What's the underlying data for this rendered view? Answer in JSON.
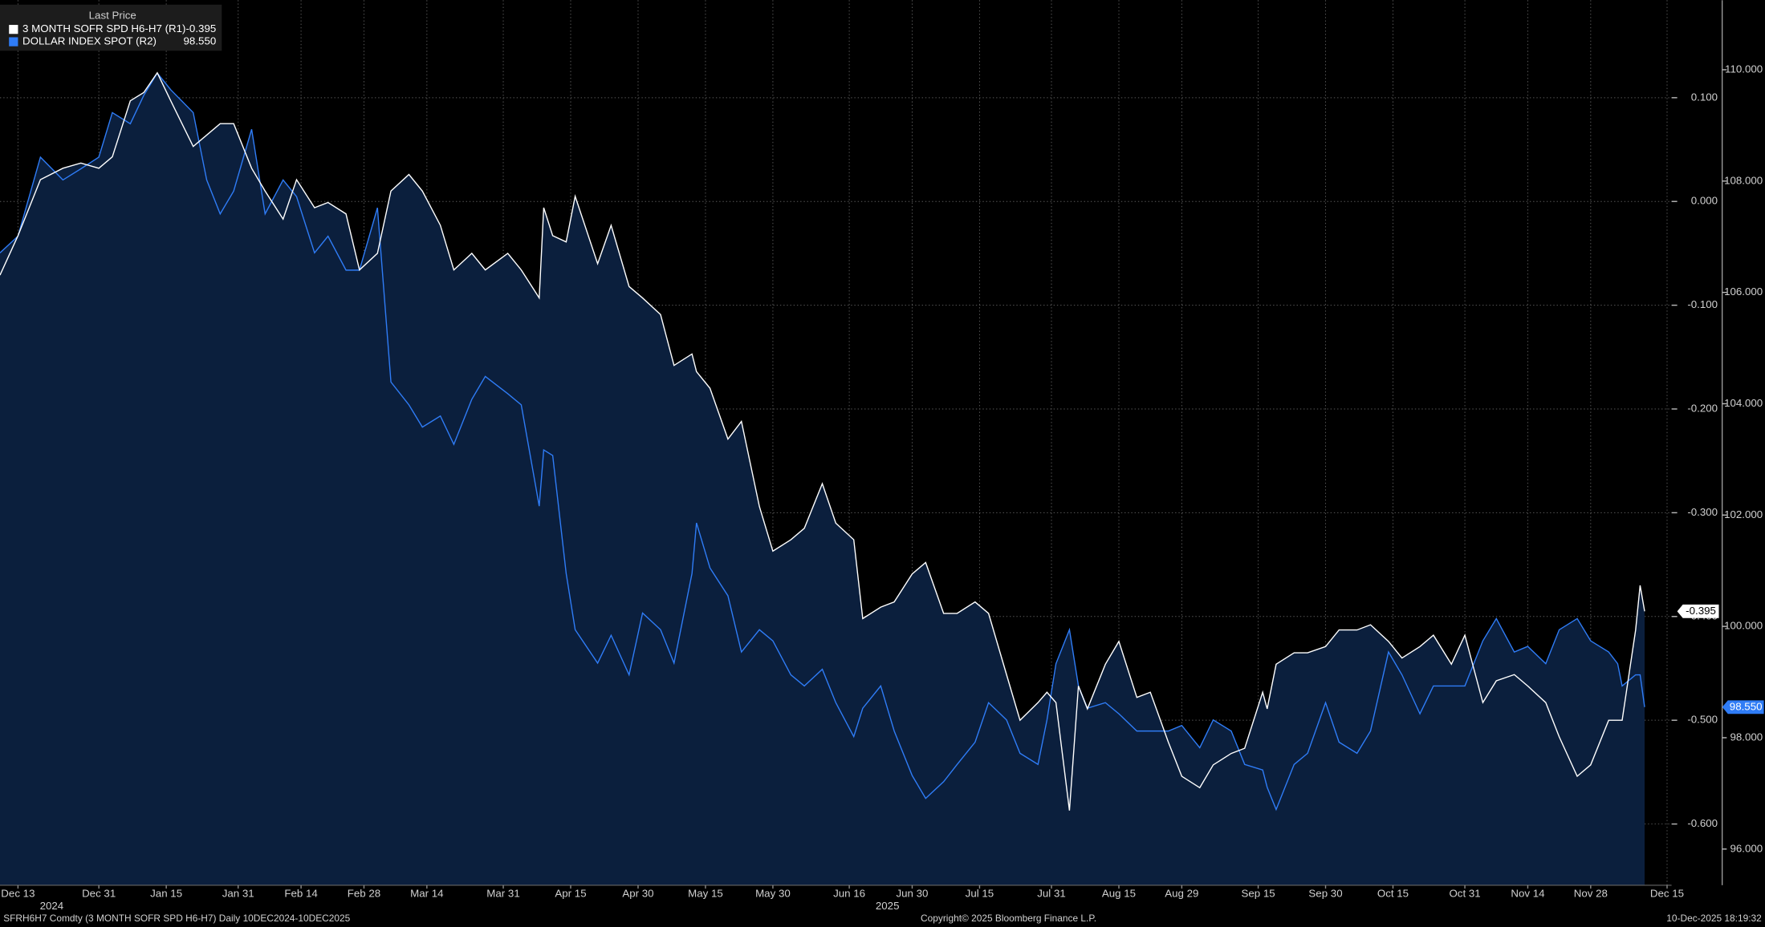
{
  "chart_data": {
    "type": "line",
    "legend_title": "Last Price",
    "x": [
      "2024-12-09",
      "2024-12-13",
      "2024-12-18",
      "2024-12-23",
      "2024-12-27",
      "2024-12-31",
      "2025-01-03",
      "2025-01-07",
      "2025-01-10",
      "2025-01-13",
      "2025-01-16",
      "2025-01-21",
      "2025-01-24",
      "2025-01-27",
      "2025-01-30",
      "2025-02-03",
      "2025-02-06",
      "2025-02-10",
      "2025-02-13",
      "2025-02-17",
      "2025-02-20",
      "2025-02-24",
      "2025-02-27",
      "2025-03-03",
      "2025-03-06",
      "2025-03-10",
      "2025-03-13",
      "2025-03-17",
      "2025-03-20",
      "2025-03-24",
      "2025-03-27",
      "2025-04-01",
      "2025-04-04",
      "2025-04-08",
      "2025-04-09",
      "2025-04-11",
      "2025-04-14",
      "2025-04-16",
      "2025-04-21",
      "2025-04-24",
      "2025-04-28",
      "2025-05-01",
      "2025-05-05",
      "2025-05-08",
      "2025-05-12",
      "2025-05-13",
      "2025-05-16",
      "2025-05-20",
      "2025-05-23",
      "2025-05-27",
      "2025-05-30",
      "2025-06-03",
      "2025-06-06",
      "2025-06-10",
      "2025-06-13",
      "2025-06-17",
      "2025-06-19",
      "2025-06-23",
      "2025-06-26",
      "2025-06-30",
      "2025-07-03",
      "2025-07-07",
      "2025-07-10",
      "2025-07-14",
      "2025-07-17",
      "2025-07-21",
      "2025-07-24",
      "2025-07-28",
      "2025-07-30",
      "2025-08-01",
      "2025-08-04",
      "2025-08-06",
      "2025-08-08",
      "2025-08-12",
      "2025-08-15",
      "2025-08-19",
      "2025-08-22",
      "2025-08-26",
      "2025-08-29",
      "2025-09-02",
      "2025-09-05",
      "2025-09-09",
      "2025-09-12",
      "2025-09-16",
      "2025-09-17",
      "2025-09-19",
      "2025-09-23",
      "2025-09-26",
      "2025-09-30",
      "2025-10-03",
      "2025-10-07",
      "2025-10-10",
      "2025-10-14",
      "2025-10-17",
      "2025-10-21",
      "2025-10-24",
      "2025-10-28",
      "2025-10-31",
      "2025-11-04",
      "2025-11-07",
      "2025-11-11",
      "2025-11-14",
      "2025-11-18",
      "2025-11-21",
      "2025-11-25",
      "2025-11-28",
      "2025-12-02",
      "2025-12-04",
      "2025-12-05",
      "2025-12-08",
      "2025-12-09",
      "2025-12-10"
    ],
    "series": [
      {
        "name": "3 MONTH SOFR SPD H6-H7 (R1)",
        "color": "#ffffff",
        "axis": "y",
        "last_label": "-0.395",
        "values": [
          -0.071,
          -0.033,
          0.021,
          0.032,
          0.037,
          0.032,
          0.043,
          0.097,
          0.105,
          0.124,
          0.097,
          0.053,
          0.064,
          0.075,
          0.075,
          0.032,
          0.01,
          -0.017,
          0.021,
          -0.006,
          -0.001,
          -0.012,
          -0.066,
          -0.05,
          0.01,
          0.026,
          0.01,
          -0.023,
          -0.066,
          -0.05,
          -0.066,
          -0.05,
          -0.066,
          -0.093,
          -0.006,
          -0.033,
          -0.039,
          0.005,
          -0.06,
          -0.023,
          -0.082,
          -0.093,
          -0.109,
          -0.158,
          -0.147,
          -0.164,
          -0.18,
          -0.229,
          -0.212,
          -0.294,
          -0.337,
          -0.326,
          -0.315,
          -0.272,
          -0.31,
          -0.326,
          -0.402,
          -0.391,
          -0.386,
          -0.359,
          -0.348,
          -0.397,
          -0.397,
          -0.386,
          -0.397,
          -0.456,
          -0.5,
          -0.483,
          -0.473,
          -0.483,
          -0.587,
          -0.467,
          -0.489,
          -0.446,
          -0.424,
          -0.478,
          -0.473,
          -0.521,
          -0.554,
          -0.565,
          -0.543,
          -0.532,
          -0.527,
          -0.473,
          -0.489,
          -0.446,
          -0.435,
          -0.435,
          -0.429,
          -0.413,
          -0.413,
          -0.408,
          -0.424,
          -0.44,
          -0.429,
          -0.418,
          -0.446,
          -0.418,
          -0.483,
          -0.462,
          -0.456,
          -0.467,
          -0.483,
          -0.516,
          -0.554,
          -0.543,
          -0.5,
          -0.5,
          -0.5,
          -0.413,
          -0.37,
          -0.395
        ]
      },
      {
        "name": "DOLLAR INDEX SPOT (R2)",
        "color": "#2f7cf6",
        "axis": "y2",
        "last_label": "98.550",
        "values": [
          106.71,
          107.01,
          108.43,
          108.02,
          108.22,
          108.43,
          109.23,
          109.03,
          109.54,
          109.94,
          109.64,
          109.23,
          108.02,
          107.41,
          107.82,
          108.93,
          107.41,
          108.02,
          107.72,
          106.71,
          107.01,
          106.4,
          106.4,
          107.52,
          104.39,
          103.98,
          103.58,
          103.78,
          103.27,
          104.08,
          104.49,
          104.18,
          103.98,
          102.16,
          103.17,
          103.07,
          100.95,
          99.94,
          99.34,
          99.84,
          99.13,
          100.24,
          99.94,
          99.34,
          100.95,
          101.86,
          101.05,
          100.55,
          99.54,
          99.94,
          99.74,
          99.13,
          98.93,
          99.23,
          98.63,
          98.02,
          98.53,
          98.93,
          98.12,
          97.32,
          96.91,
          97.21,
          97.52,
          97.92,
          98.63,
          98.32,
          97.72,
          97.52,
          98.32,
          99.33,
          99.94,
          98.93,
          98.53,
          98.63,
          98.43,
          98.12,
          98.12,
          98.12,
          98.22,
          97.82,
          98.32,
          98.12,
          97.52,
          97.42,
          97.11,
          96.71,
          97.52,
          97.72,
          98.63,
          97.92,
          97.72,
          98.12,
          99.54,
          99.13,
          98.43,
          98.93,
          98.93,
          98.93,
          99.74,
          100.14,
          99.54,
          99.64,
          99.33,
          99.94,
          100.14,
          99.74,
          99.54,
          99.33,
          98.93,
          99.13,
          99.13,
          98.55
        ]
      }
    ],
    "xlim": [
      "2024-12-09",
      "2025-12-16"
    ],
    "xticks": [
      {
        "value": "2024-12-13",
        "label": "Dec 13"
      },
      {
        "value": "2024-12-31",
        "label": "Dec 31"
      },
      {
        "value": "2025-01-15",
        "label": "Jan 15"
      },
      {
        "value": "2025-01-31",
        "label": "Jan 31"
      },
      {
        "value": "2025-02-14",
        "label": "Feb 14"
      },
      {
        "value": "2025-02-28",
        "label": "Feb 28"
      },
      {
        "value": "2025-03-14",
        "label": "Mar 14"
      },
      {
        "value": "2025-03-31",
        "label": "Mar 31"
      },
      {
        "value": "2025-04-15",
        "label": "Apr 15"
      },
      {
        "value": "2025-04-30",
        "label": "Apr 30"
      },
      {
        "value": "2025-05-15",
        "label": "May 15"
      },
      {
        "value": "2025-05-30",
        "label": "May 30"
      },
      {
        "value": "2025-06-16",
        "label": "Jun 16"
      },
      {
        "value": "2025-06-30",
        "label": "Jun 30"
      },
      {
        "value": "2025-07-15",
        "label": "Jul 15"
      },
      {
        "value": "2025-07-31",
        "label": "Jul 31"
      },
      {
        "value": "2025-08-15",
        "label": "Aug 15"
      },
      {
        "value": "2025-08-29",
        "label": "Aug 29"
      },
      {
        "value": "2025-09-15",
        "label": "Sep 15"
      },
      {
        "value": "2025-09-30",
        "label": "Sep 30"
      },
      {
        "value": "2025-10-15",
        "label": "Oct 15"
      },
      {
        "value": "2025-10-31",
        "label": "Oct 31"
      },
      {
        "value": "2025-11-14",
        "label": "Nov 14"
      },
      {
        "value": "2025-11-28",
        "label": "Nov 28"
      },
      {
        "value": "2025-12-15",
        "label": "Dec 15"
      }
    ],
    "x_year_labels": [
      "2024",
      "2025"
    ],
    "ylim": [
      -0.659,
      0.194
    ],
    "yticks": [
      {
        "value": 0.1,
        "label": "0.100"
      },
      {
        "value": 0,
        "label": "0.000"
      },
      {
        "value": -0.1,
        "label": "-0.100"
      },
      {
        "value": -0.2,
        "label": "-0.200"
      },
      {
        "value": -0.3,
        "label": "-0.300"
      },
      {
        "value": -0.4,
        "label": "-0.400"
      },
      {
        "value": -0.5,
        "label": "-0.500"
      },
      {
        "value": -0.6,
        "label": "-0.600"
      }
    ],
    "y2lim": [
      95.35,
      111.25
    ],
    "y2ticks": [
      {
        "value": 110,
        "label": "110.000"
      },
      {
        "value": 108,
        "label": "108.000"
      },
      {
        "value": 106,
        "label": "106.000"
      },
      {
        "value": 104,
        "label": "104.000"
      },
      {
        "value": 102,
        "label": "102.000"
      },
      {
        "value": 100,
        "label": "100.000"
      },
      {
        "value": 98,
        "label": "98.000"
      },
      {
        "value": 96,
        "label": "96.000"
      }
    ],
    "grid": true,
    "area_fill": "#0b1f3d",
    "footer_left": "SFRH6H7 Comdty (3 MONTH SOFR SPD  H6-H7) Daily 10DEC2024-10DEC2025",
    "footer_center": "Copyright© 2025 Bloomberg Finance L.P.",
    "footer_right": "10-Dec-2025 18:19:32"
  }
}
